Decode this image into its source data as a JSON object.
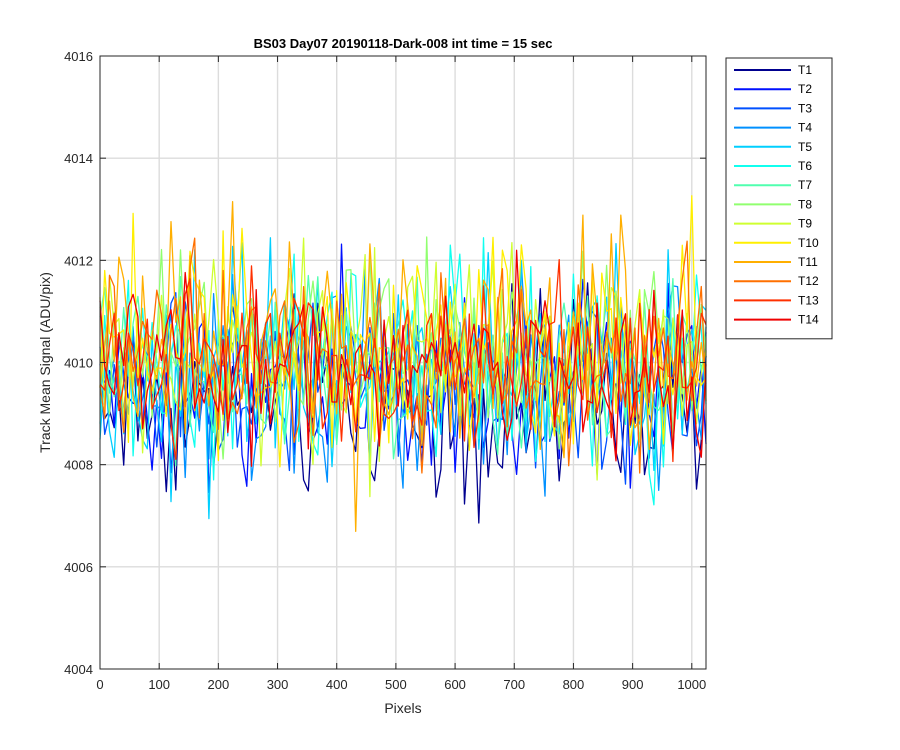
{
  "chart_data": {
    "type": "line",
    "title": "BS03 Day07 20190118-Dark-008 int time = 15 sec",
    "xlabel": "Pixels",
    "ylabel": "Track Mean Signal (ADU/pix)",
    "xlim": [
      0,
      1024
    ],
    "ylim": [
      4004,
      4016
    ],
    "xticks": [
      0,
      100,
      200,
      300,
      400,
      500,
      600,
      700,
      800,
      900,
      1000
    ],
    "yticks": [
      4004,
      4006,
      4008,
      4010,
      4012,
      4014,
      4016
    ],
    "grid": true,
    "legend_position": "outside-right-top",
    "series_profile": {
      "x_step": 8,
      "mean": 4010.0,
      "typical_min": 4006.5,
      "typical_max": 4013.5
    },
    "series": [
      {
        "name": "T1",
        "color": "#00008f",
        "mean": 4009.2,
        "spread": 1.3
      },
      {
        "name": "T2",
        "color": "#0010ff",
        "mean": 4009.3,
        "spread": 1.3
      },
      {
        "name": "T3",
        "color": "#0050ff",
        "mean": 4009.5,
        "spread": 1.2
      },
      {
        "name": "T4",
        "color": "#0090ff",
        "mean": 4009.7,
        "spread": 1.3
      },
      {
        "name": "T5",
        "color": "#00cfff",
        "mean": 4009.9,
        "spread": 1.4
      },
      {
        "name": "T6",
        "color": "#10ffef",
        "mean": 4010.0,
        "spread": 1.4
      },
      {
        "name": "T7",
        "color": "#50ffaf",
        "mean": 4010.0,
        "spread": 1.3
      },
      {
        "name": "T8",
        "color": "#90ff6f",
        "mean": 4010.1,
        "spread": 1.3
      },
      {
        "name": "T9",
        "color": "#cfff30",
        "mean": 4010.2,
        "spread": 1.3
      },
      {
        "name": "T10",
        "color": "#ffef00",
        "mean": 4010.3,
        "spread": 1.4
      },
      {
        "name": "T11",
        "color": "#ffaf00",
        "mean": 4010.2,
        "spread": 1.4
      },
      {
        "name": "T12",
        "color": "#ff7000",
        "mean": 4010.1,
        "spread": 1.3
      },
      {
        "name": "T13",
        "color": "#ff3000",
        "mean": 4010.0,
        "spread": 1.2
      },
      {
        "name": "T14",
        "color": "#ef0000",
        "mean": 4009.9,
        "spread": 1.1
      }
    ]
  }
}
